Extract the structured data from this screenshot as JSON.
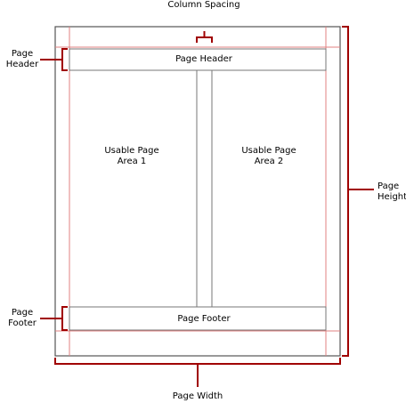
{
  "labels": {
    "column_spacing": "Column Spacing",
    "page_header_side": "Page\nHeader",
    "page_header_band": "Page Header",
    "usable_area_1": "Usable Page\nArea 1",
    "usable_area_2": "Usable Page\nArea 2",
    "page_height": "Page\nHeight",
    "page_footer_side": "Page\nFooter",
    "page_footer_band": "Page Footer",
    "page_width": "Page Width"
  },
  "colors": {
    "page_border": "#555555",
    "band_border": "#777777",
    "margin_guide": "#e08080",
    "bracket": "#a00000"
  }
}
